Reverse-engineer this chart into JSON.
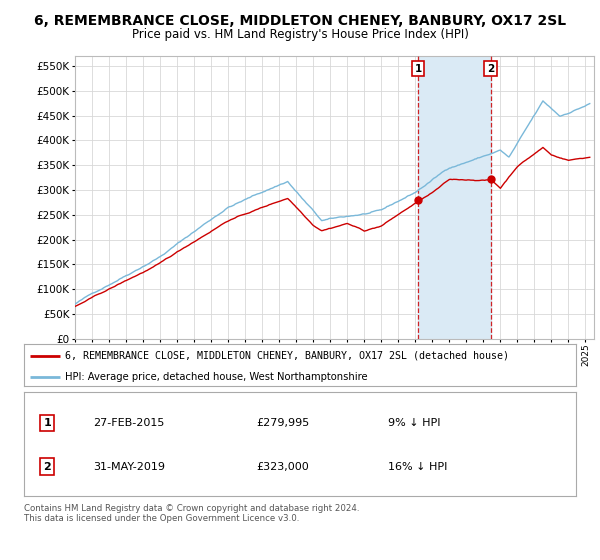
{
  "title": "6, REMEMBRANCE CLOSE, MIDDLETON CHENEY, BANBURY, OX17 2SL",
  "subtitle": "Price paid vs. HM Land Registry's House Price Index (HPI)",
  "ylabel_vals": [
    0,
    50000,
    100000,
    150000,
    200000,
    250000,
    300000,
    350000,
    400000,
    450000,
    500000,
    550000
  ],
  "ylim": [
    0,
    570000
  ],
  "xlim_start": 1995.0,
  "xlim_end": 2025.5,
  "sale1_x": 2015.16,
  "sale1_y": 279995,
  "sale2_x": 2019.42,
  "sale2_y": 323000,
  "sale1_label": "1",
  "sale2_label": "2",
  "sale1_date": "27-FEB-2015",
  "sale1_price": "£279,995",
  "sale1_note": "9% ↓ HPI",
  "sale2_date": "31-MAY-2019",
  "sale2_price": "£323,000",
  "sale2_note": "16% ↓ HPI",
  "red_line_label": "6, REMEMBRANCE CLOSE, MIDDLETON CHENEY, BANBURY, OX17 2SL (detached house)",
  "blue_line_label": "HPI: Average price, detached house, West Northamptonshire",
  "copyright_text": "Contains HM Land Registry data © Crown copyright and database right 2024.\nThis data is licensed under the Open Government Licence v3.0.",
  "hpi_color": "#7ab8d9",
  "price_color": "#cc0000",
  "shade_color": "#daeaf5",
  "vline_color": "#cc0000",
  "background_color": "#ffffff",
  "grid_color": "#d8d8d8"
}
